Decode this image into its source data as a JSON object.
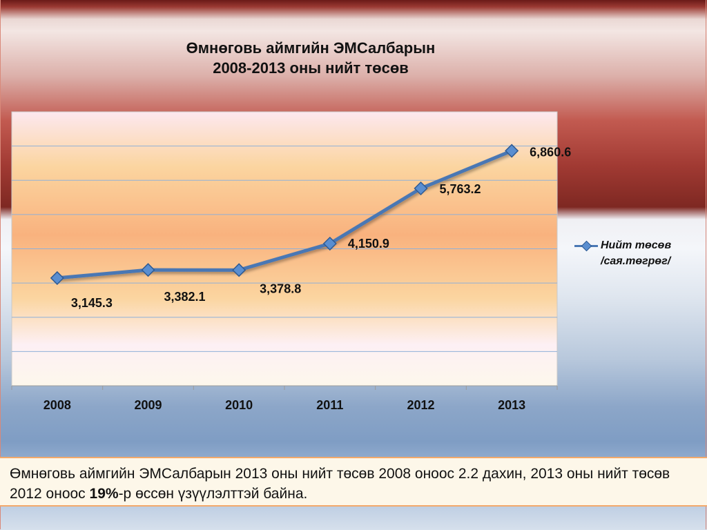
{
  "chart_data": {
    "type": "line",
    "title_lines": [
      "Өмнөговь аймгийн ЭМСалбарын",
      "2008-2013 оны нийт төсөв"
    ],
    "categories": [
      "2008",
      "2009",
      "2010",
      "2011",
      "2012",
      "2013"
    ],
    "series": [
      {
        "name_lines": [
          "Нийт төсөв",
          "/сая.төгрөг/"
        ],
        "values": [
          3145.3,
          3382.1,
          3378.8,
          4150.9,
          5763.2,
          6860.6
        ],
        "labels": [
          "3,145.3",
          "3,382.1",
          "3,378.8",
          "4,150.9",
          "5,763.2",
          "6,860.6"
        ],
        "color": "#4a77b4",
        "marker": "diamond"
      }
    ],
    "ylim": [
      0,
      8000
    ],
    "y_gridline_step": 1000,
    "y_axis_tick_labels": false,
    "grid": true,
    "legend_position": "right",
    "plot_background": [
      "#fde8f0",
      "#fbd5a0",
      "#f9b27e",
      "#fbd5a0",
      "#fdf0f4",
      "#fdf7ec"
    ]
  },
  "summary": {
    "before_bold": "Өмнөговь аймгийн ЭМСалбарын 2013 оны нийт төсөв 2008 оноос 2.2 дахин, 2013 оны нийт төсөв 2012 оноос ",
    "bold": "19%",
    "after_bold": "-р өссөн үзүүлэлттэй байна."
  }
}
